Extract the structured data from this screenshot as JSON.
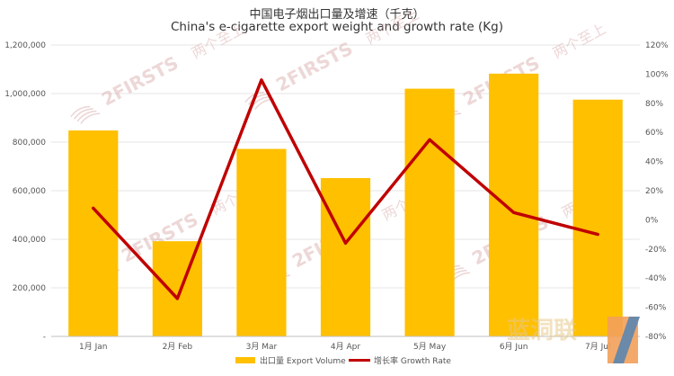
{
  "title_cn": "中国电子烟出口量及增速（千克）",
  "title_en": "China's e-cigarette export weight and growth rate (Kg)",
  "watermark": {
    "brand": "2FIRSTS",
    "brand_cn": "两个至上",
    "corner_logo_text": "蓝洞联"
  },
  "colors": {
    "bar": "#FFC000",
    "line": "#C00000",
    "grid": "#e6e6e6",
    "watermark": "#d9a7a7"
  },
  "chart_data": {
    "type": "bar",
    "categories": [
      "1月 Jan",
      "2月 Feb",
      "3月 Mar",
      "4月 Apr",
      "5月 May",
      "6月 Jun",
      "7月 Jul"
    ],
    "series": [
      {
        "name": "出口量 Export Volume",
        "type": "bar",
        "axis": "left",
        "values": [
          848000,
          392000,
          772000,
          652000,
          1020000,
          1082000,
          975000
        ]
      },
      {
        "name": "增长率 Growth Rate",
        "type": "line",
        "axis": "right",
        "unit": "%",
        "values": [
          8,
          -54,
          96,
          -16,
          55,
          5,
          -10
        ]
      }
    ],
    "left_axis": {
      "ylim": [
        0,
        1200000
      ],
      "ticks": [
        "-",
        "200,000",
        "400,000",
        "600,000",
        "800,000",
        "1,000,000",
        "1,200,000"
      ]
    },
    "right_axis": {
      "ylim": [
        -80,
        120
      ],
      "ticks": [
        "-80%",
        "-60%",
        "-40%",
        "-20%",
        "0%",
        "20%",
        "40%",
        "60%",
        "80%",
        "100%",
        "120%"
      ]
    },
    "grid": true,
    "legend_position": "bottom"
  }
}
